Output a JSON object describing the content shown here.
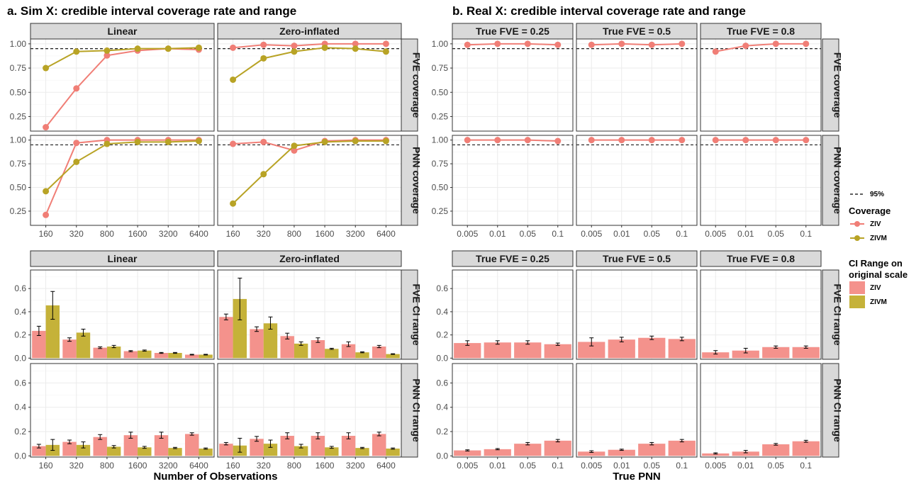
{
  "titles": {
    "a": "a. Sim X: credible interval coverage rate and range",
    "b": "b. Real X: credible interval coverage rate and range"
  },
  "colors": {
    "ZIV": "#f07e76",
    "ZIVM": "#b8a325",
    "ZIV_fill": "#f4928c",
    "ZIVM_fill": "#c5b239",
    "strip": "#d9d9d9",
    "panel_border": "#333333",
    "grid": "#ebebeb"
  },
  "strips": {
    "top": [
      "Linear",
      "Zero-inflated",
      "True FVE = 0.25",
      "True FVE = 0.5",
      "True FVE = 0.8"
    ],
    "bottom": [
      "Linear",
      "Zero-inflated",
      "True FVE = 0.25",
      "True FVE = 0.5",
      "True FVE = 0.8"
    ],
    "rows": [
      "FVE coverage",
      "PNN coverage",
      "FVE CI range",
      "PNN CI range"
    ]
  },
  "axes": {
    "sim_x_ticks": [
      "160",
      "320",
      "800",
      "1600",
      "3200",
      "6400"
    ],
    "real_x_ticks": [
      "0.005",
      "0.01",
      "0.05",
      "0.1"
    ],
    "coverage_y_ticks": [
      "0.25",
      "0.50",
      "0.75",
      "1.00"
    ],
    "range_y_ticks": [
      "0.0",
      "0.2",
      "0.4",
      "0.6"
    ],
    "xlabel_a": "Number of Observations",
    "xlabel_b": "True PNN"
  },
  "legend": {
    "ref_label": "95%",
    "coverage_title": "Coverage",
    "range_title": "CI Range on original scale",
    "ziv": "ZIV",
    "zivm": "ZIVM"
  },
  "chart_data": {
    "type": "line",
    "reference_line": 0.95,
    "coverage_ylim": [
      0.1,
      1.05
    ],
    "range_ylim": [
      -0.01,
      0.76
    ],
    "coverage": {
      "sim": {
        "FVE": {
          "Linear": {
            "ZIV": [
              0.14,
              0.54,
              0.88,
              0.93,
              0.95,
              0.94
            ],
            "ZIVM": [
              0.75,
              0.92,
              0.93,
              0.95,
              0.95,
              0.96
            ]
          },
          "Zero-inflated": {
            "ZIV": [
              0.96,
              0.99,
              0.98,
              1.0,
              1.0,
              1.0
            ],
            "ZIVM": [
              0.63,
              0.85,
              0.92,
              0.96,
              0.95,
              0.92
            ]
          }
        },
        "PNN": {
          "Linear": {
            "ZIV": [
              0.21,
              0.97,
              1.0,
              1.0,
              1.0,
              1.0
            ],
            "ZIVM": [
              0.46,
              0.77,
              0.96,
              0.98,
              0.98,
              0.99
            ]
          },
          "Zero-inflated": {
            "ZIV": [
              0.96,
              0.98,
              0.89,
              0.99,
              1.0,
              1.0
            ],
            "ZIVM": [
              0.33,
              0.64,
              0.94,
              0.98,
              0.99,
              0.99
            ]
          }
        }
      },
      "real": {
        "FVE": {
          "True FVE = 0.25": [
            0.99,
            1.0,
            1.0,
            0.99
          ],
          "True FVE = 0.5": [
            0.99,
            1.0,
            0.99,
            1.0
          ],
          "True FVE = 0.8": [
            0.92,
            0.98,
            1.0,
            1.0
          ]
        },
        "PNN": {
          "True FVE = 0.25": [
            1.0,
            1.0,
            1.0,
            0.99
          ],
          "True FVE = 0.5": [
            1.0,
            1.0,
            1.0,
            1.0
          ],
          "True FVE = 0.8": [
            1.0,
            1.0,
            1.0,
            1.0
          ]
        }
      }
    },
    "ci_range": {
      "sim": {
        "FVE": {
          "Linear": {
            "ZIV": {
              "values": [
                0.235,
                0.16,
                0.09,
                0.06,
                0.045,
                0.03
              ],
              "lo": [
                0.195,
                0.145,
                0.083,
                0.055,
                0.041,
                0.027
              ],
              "hi": [
                0.275,
                0.175,
                0.097,
                0.065,
                0.049,
                0.033
              ]
            },
            "ZIVM": {
              "values": [
                0.455,
                0.22,
                0.1,
                0.065,
                0.045,
                0.03
              ],
              "lo": [
                0.335,
                0.19,
                0.09,
                0.06,
                0.041,
                0.027
              ],
              "hi": [
                0.575,
                0.25,
                0.11,
                0.07,
                0.049,
                0.033
              ]
            }
          },
          "Zero-inflated": {
            "ZIV": {
              "values": [
                0.355,
                0.25,
                0.19,
                0.155,
                0.12,
                0.1
              ],
              "lo": [
                0.33,
                0.23,
                0.165,
                0.135,
                0.1,
                0.09
              ],
              "hi": [
                0.38,
                0.27,
                0.215,
                0.175,
                0.14,
                0.11
              ]
            },
            "ZIVM": {
              "values": [
                0.51,
                0.3,
                0.125,
                0.08,
                0.05,
                0.035
              ],
              "lo": [
                0.33,
                0.25,
                0.11,
                0.075,
                0.046,
                0.032
              ],
              "hi": [
                0.69,
                0.355,
                0.14,
                0.085,
                0.054,
                0.038
              ]
            }
          }
        },
        "PNN": {
          "Linear": {
            "ZIV": {
              "values": [
                0.08,
                0.115,
                0.155,
                0.17,
                0.17,
                0.18
              ],
              "lo": [
                0.065,
                0.1,
                0.135,
                0.145,
                0.145,
                0.17
              ],
              "hi": [
                0.095,
                0.13,
                0.175,
                0.195,
                0.195,
                0.19
              ]
            },
            "ZIVM": {
              "values": [
                0.09,
                0.09,
                0.075,
                0.07,
                0.065,
                0.06
              ],
              "lo": [
                0.045,
                0.065,
                0.065,
                0.062,
                0.06,
                0.055
              ],
              "hi": [
                0.135,
                0.115,
                0.085,
                0.078,
                0.07,
                0.065
              ]
            }
          },
          "Zero-inflated": {
            "ZIV": {
              "values": [
                0.1,
                0.14,
                0.165,
                0.165,
                0.165,
                0.18
              ],
              "lo": [
                0.09,
                0.12,
                0.14,
                0.14,
                0.14,
                0.165
              ],
              "hi": [
                0.11,
                0.16,
                0.19,
                0.19,
                0.19,
                0.195
              ]
            },
            "ZIVM": {
              "values": [
                0.085,
                0.1,
                0.08,
                0.07,
                0.065,
                0.06
              ],
              "lo": [
                0.03,
                0.07,
                0.065,
                0.062,
                0.06,
                0.055
              ],
              "hi": [
                0.145,
                0.13,
                0.095,
                0.078,
                0.07,
                0.065
              ]
            }
          }
        }
      },
      "real": {
        "FVE": {
          "True FVE = 0.25": {
            "values": [
              0.13,
              0.135,
              0.135,
              0.12
            ],
            "lo": [
              0.11,
              0.12,
              0.12,
              0.11
            ],
            "hi": [
              0.15,
              0.15,
              0.15,
              0.13
            ]
          },
          "True FVE = 0.5": {
            "values": [
              0.14,
              0.16,
              0.175,
              0.165
            ],
            "lo": [
              0.105,
              0.14,
              0.16,
              0.15
            ],
            "hi": [
              0.175,
              0.18,
              0.19,
              0.18
            ]
          },
          "True FVE = 0.8": {
            "values": [
              0.05,
              0.065,
              0.095,
              0.095
            ],
            "lo": [
              0.035,
              0.045,
              0.085,
              0.085
            ],
            "hi": [
              0.065,
              0.085,
              0.105,
              0.105
            ]
          }
        },
        "PNN": {
          "True FVE = 0.25": {
            "values": [
              0.045,
              0.055,
              0.1,
              0.125
            ],
            "lo": [
              0.04,
              0.05,
              0.09,
              0.115
            ],
            "hi": [
              0.05,
              0.06,
              0.11,
              0.135
            ]
          },
          "True FVE = 0.5": {
            "values": [
              0.035,
              0.05,
              0.1,
              0.125
            ],
            "lo": [
              0.028,
              0.045,
              0.09,
              0.115
            ],
            "hi": [
              0.042,
              0.055,
              0.11,
              0.135
            ]
          },
          "True FVE = 0.8": {
            "values": [
              0.02,
              0.035,
              0.095,
              0.12
            ],
            "lo": [
              0.015,
              0.025,
              0.088,
              0.112
            ],
            "hi": [
              0.025,
              0.045,
              0.102,
              0.128
            ]
          }
        }
      }
    }
  }
}
